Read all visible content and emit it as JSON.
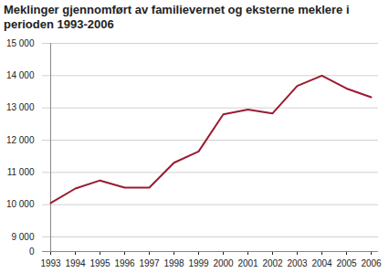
{
  "chart_data": {
    "type": "line",
    "title": "Meklinger gjennomført av familievernet og eksterne meklere i perioden 1993-2006",
    "x": [
      1993,
      1994,
      1995,
      1996,
      1997,
      1998,
      1999,
      2000,
      2001,
      2002,
      2003,
      2004,
      2005,
      2006
    ],
    "values": [
      10050,
      10500,
      10750,
      10530,
      10530,
      11300,
      11650,
      12800,
      12950,
      12830,
      13680,
      14000,
      13600,
      13330
    ],
    "color": "#9b1b30",
    "ylim": [
      0,
      15000
    ],
    "yticks": [
      0,
      {
        "value": 9000,
        "label": "9 000"
      },
      {
        "value": 10000,
        "label": "10 000"
      },
      {
        "value": 11000,
        "label": "11 000"
      },
      {
        "value": 12000,
        "label": "12 000"
      },
      {
        "value": 13000,
        "label": "13 000"
      },
      {
        "value": 14000,
        "label": "14 000"
      },
      {
        "value": 15000,
        "label": "15 000"
      }
    ],
    "grid": true
  }
}
